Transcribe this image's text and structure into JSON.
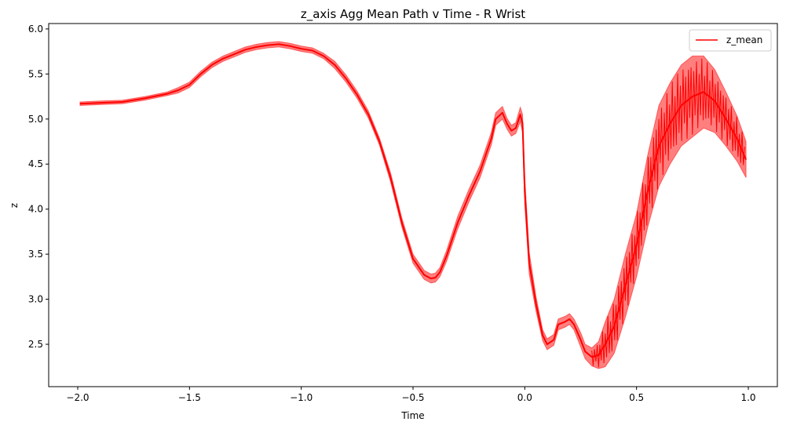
{
  "chart_data": {
    "type": "line",
    "title": "z_axis Agg Mean Path v Time - R Wrist",
    "xlabel": "Time",
    "ylabel": "z",
    "xlim": [
      -2.13,
      1.13
    ],
    "ylim": [
      2.03,
      6.06
    ],
    "xticks": [
      -2.0,
      -1.5,
      -1.0,
      -0.5,
      0.0,
      0.5,
      1.0
    ],
    "xtick_labels": [
      "−2.0",
      "−1.5",
      "−1.0",
      "−0.5",
      "0.0",
      "0.5",
      "1.0"
    ],
    "yticks": [
      2.5,
      3.0,
      3.5,
      4.0,
      4.5,
      5.0,
      5.5,
      6.0
    ],
    "ytick_labels": [
      "2.5",
      "3.0",
      "3.5",
      "4.0",
      "4.5",
      "5.0",
      "5.5",
      "6.0"
    ],
    "grid": false,
    "legend_position": "top-right",
    "colors": {
      "line": "#ff0000",
      "band": "#ff0000"
    },
    "series": [
      {
        "name": "z_mean",
        "x": [
          -1.99,
          -1.9,
          -1.8,
          -1.7,
          -1.6,
          -1.55,
          -1.5,
          -1.45,
          -1.4,
          -1.35,
          -1.3,
          -1.25,
          -1.2,
          -1.15,
          -1.1,
          -1.05,
          -1.0,
          -0.95,
          -0.9,
          -0.85,
          -0.8,
          -0.75,
          -0.7,
          -0.65,
          -0.6,
          -0.55,
          -0.5,
          -0.45,
          -0.42,
          -0.4,
          -0.38,
          -0.35,
          -0.3,
          -0.25,
          -0.2,
          -0.15,
          -0.13,
          -0.1,
          -0.08,
          -0.06,
          -0.04,
          -0.02,
          -0.01,
          0.0,
          0.02,
          0.05,
          0.08,
          0.1,
          0.13,
          0.15,
          0.18,
          0.2,
          0.22,
          0.25,
          0.27,
          0.3,
          0.33,
          0.36,
          0.4,
          0.45,
          0.5,
          0.55,
          0.6,
          0.65,
          0.7,
          0.75,
          0.8,
          0.85,
          0.9,
          0.95,
          0.99
        ],
        "y": [
          5.17,
          5.18,
          5.19,
          5.23,
          5.28,
          5.32,
          5.38,
          5.5,
          5.6,
          5.67,
          5.72,
          5.77,
          5.8,
          5.82,
          5.83,
          5.81,
          5.78,
          5.76,
          5.7,
          5.6,
          5.45,
          5.27,
          5.05,
          4.75,
          4.35,
          3.85,
          3.45,
          3.27,
          3.23,
          3.24,
          3.3,
          3.48,
          3.85,
          4.15,
          4.42,
          4.78,
          5.0,
          5.07,
          4.95,
          4.87,
          4.9,
          5.05,
          4.95,
          4.2,
          3.4,
          2.95,
          2.6,
          2.5,
          2.55,
          2.72,
          2.75,
          2.78,
          2.72,
          2.55,
          2.42,
          2.36,
          2.38,
          2.5,
          2.7,
          3.15,
          3.6,
          4.2,
          4.7,
          4.95,
          5.15,
          5.25,
          5.3,
          5.2,
          5.0,
          4.78,
          4.55
        ],
        "band": [
          0.02,
          0.02,
          0.02,
          0.02,
          0.02,
          0.03,
          0.03,
          0.03,
          0.03,
          0.03,
          0.03,
          0.03,
          0.03,
          0.03,
          0.03,
          0.03,
          0.03,
          0.03,
          0.03,
          0.04,
          0.04,
          0.04,
          0.04,
          0.04,
          0.05,
          0.05,
          0.05,
          0.05,
          0.05,
          0.05,
          0.05,
          0.06,
          0.07,
          0.07,
          0.07,
          0.07,
          0.07,
          0.07,
          0.06,
          0.06,
          0.06,
          0.08,
          0.1,
          0.15,
          0.12,
          0.08,
          0.06,
          0.06,
          0.06,
          0.06,
          0.06,
          0.06,
          0.06,
          0.08,
          0.08,
          0.1,
          0.15,
          0.25,
          0.3,
          0.35,
          0.35,
          0.4,
          0.45,
          0.45,
          0.45,
          0.45,
          0.4,
          0.35,
          0.3,
          0.25,
          0.2
        ]
      }
    ]
  }
}
